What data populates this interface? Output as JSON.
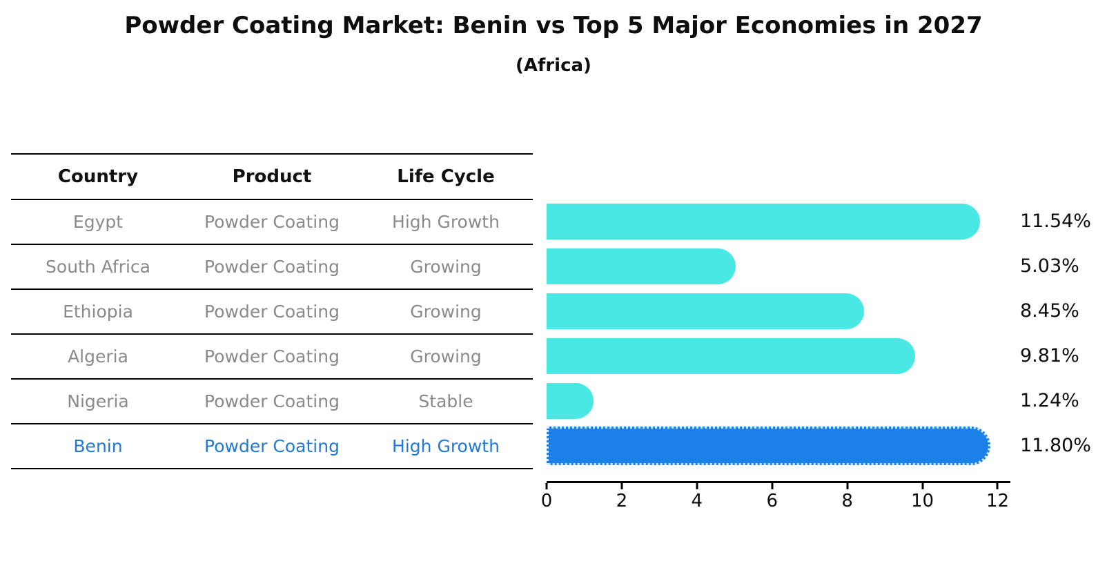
{
  "title": "Powder Coating Market: Benin vs Top 5 Major Economies in 2027",
  "subtitle": "(Africa)",
  "table": {
    "headers": [
      "Country",
      "Product",
      "Life Cycle"
    ],
    "rows": [
      {
        "country": "Egypt",
        "product": "Powder Coating",
        "life_cycle": "High Growth",
        "highlight": false
      },
      {
        "country": "South Africa",
        "product": "Powder Coating",
        "life_cycle": "Growing",
        "highlight": false
      },
      {
        "country": "Ethiopia",
        "product": "Powder Coating",
        "life_cycle": "Growing",
        "highlight": false
      },
      {
        "country": "Algeria",
        "product": "Powder Coating",
        "life_cycle": "Growing",
        "highlight": false
      },
      {
        "country": "Nigeria",
        "product": "Powder Coating",
        "life_cycle": "Stable",
        "highlight": false
      },
      {
        "country": "Benin",
        "product": "Powder Coating",
        "life_cycle": "High Growth",
        "highlight": true
      }
    ]
  },
  "chart_data": {
    "type": "bar",
    "orientation": "horizontal",
    "title": "Powder Coating Market: Benin vs Top 5 Major Economies in 2027",
    "subtitle": "(Africa)",
    "categories": [
      "Egypt",
      "South Africa",
      "Ethiopia",
      "Algeria",
      "Nigeria",
      "Benin"
    ],
    "values": [
      11.54,
      5.03,
      8.45,
      9.81,
      1.24,
      11.8
    ],
    "value_labels": [
      "11.54%",
      "5.03%",
      "8.45%",
      "9.81%",
      "1.24%",
      "11.80%"
    ],
    "highlight_category": "Benin",
    "xlim": [
      0,
      12.34
    ],
    "xticks": [
      0,
      2,
      4,
      6,
      8,
      10,
      12
    ],
    "grid": false,
    "legend": false
  },
  "colors": {
    "bar_default": "#4AE8E4",
    "bar_highlight": "#1B80E8",
    "bar_highlight_edge": "#D6EEFF",
    "highlight_text": "#2079D6",
    "row_text": "#8A8A8A",
    "header_text": "#111111",
    "axis": "#000000"
  }
}
